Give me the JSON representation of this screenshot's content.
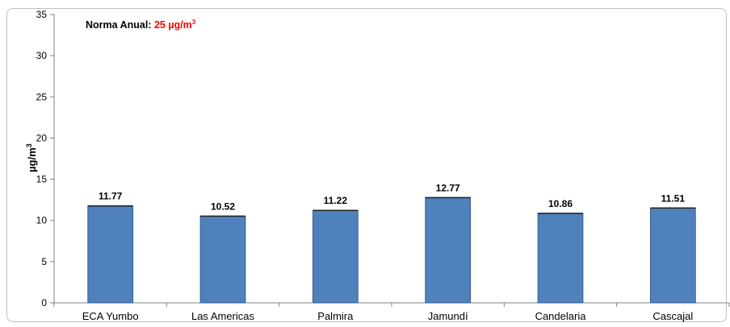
{
  "chart_data": {
    "type": "bar",
    "title": "",
    "annotation": {
      "label": "Norma Anual:",
      "value": "25 µg/m",
      "superscript": "3",
      "value_color": "#ff0000"
    },
    "ylabel": "µg/m",
    "ylabel_superscript": "3",
    "xlabel": "",
    "ylim": [
      0,
      35
    ],
    "yticks": [
      0,
      5,
      10,
      15,
      20,
      25,
      30,
      35
    ],
    "grid": false,
    "categories": [
      "ECA Yumbo",
      "Las Americas",
      "Palmira",
      "Jamundí",
      "Candelaria",
      "Cascajal"
    ],
    "values": [
      11.77,
      10.52,
      11.22,
      12.77,
      10.86,
      11.51
    ],
    "data_labels": [
      "11.77",
      "10.52",
      "11.22",
      "12.77",
      "10.86",
      "11.51"
    ],
    "bar_color": "#4f81bd",
    "bar_edge_color": "#385d8a"
  }
}
